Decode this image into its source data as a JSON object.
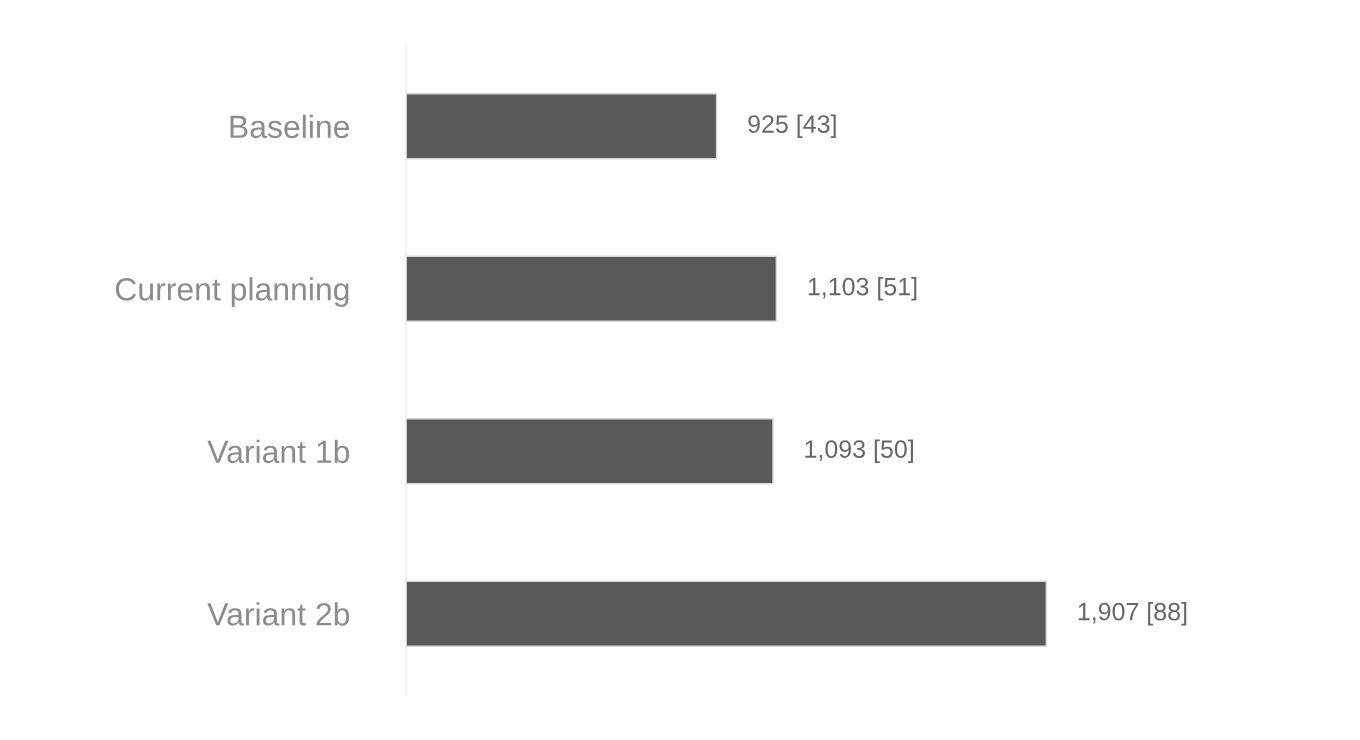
{
  "chart_data": {
    "type": "bar",
    "orientation": "horizontal",
    "categories": [
      "Baseline",
      "Current planning",
      "Variant 1b",
      "Variant 2b"
    ],
    "values": [
      925,
      1103,
      1093,
      1907
    ],
    "value_labels": [
      "925 [43]",
      "1,103 [51]",
      "1,093 [50]",
      "1,907 [88]"
    ],
    "color": "#58595b",
    "grid": false,
    "legend": false
  }
}
